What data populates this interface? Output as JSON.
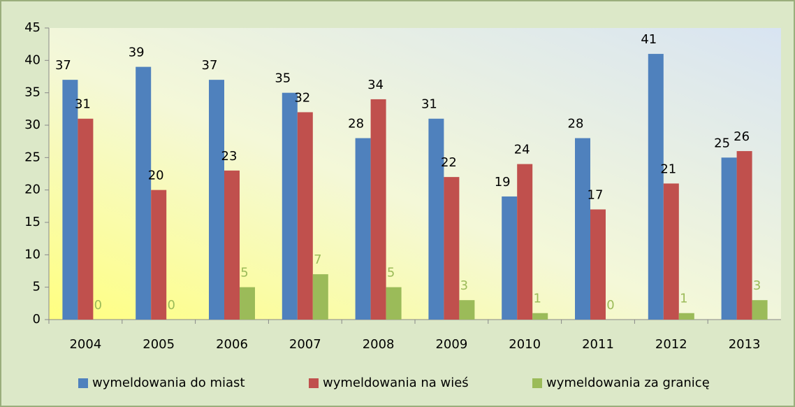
{
  "chart_data": {
    "type": "bar",
    "categories": [
      "2004",
      "2005",
      "2006",
      "2007",
      "2008",
      "2009",
      "2010",
      "2011",
      "2012",
      "2013"
    ],
    "series": [
      {
        "name": "wymeldowania do miast",
        "color": "#4f81bd",
        "label_color": "#000000",
        "values": [
          37,
          39,
          37,
          35,
          28,
          31,
          19,
          28,
          41,
          25
        ]
      },
      {
        "name": "wymeldowania na wieś",
        "color": "#c0504d",
        "label_color": "#000000",
        "values": [
          31,
          20,
          23,
          32,
          34,
          22,
          24,
          17,
          21,
          26
        ]
      },
      {
        "name": "wymeldowania za granicę",
        "color": "#9bbb59",
        "label_color": "#9bbb59",
        "values": [
          0,
          0,
          5,
          7,
          5,
          3,
          1,
          0,
          1,
          3
        ]
      }
    ],
    "ylim": [
      0,
      45
    ],
    "yticks": [
      0,
      5,
      10,
      15,
      20,
      25,
      30,
      35,
      40,
      45
    ],
    "legend": "bottom"
  }
}
